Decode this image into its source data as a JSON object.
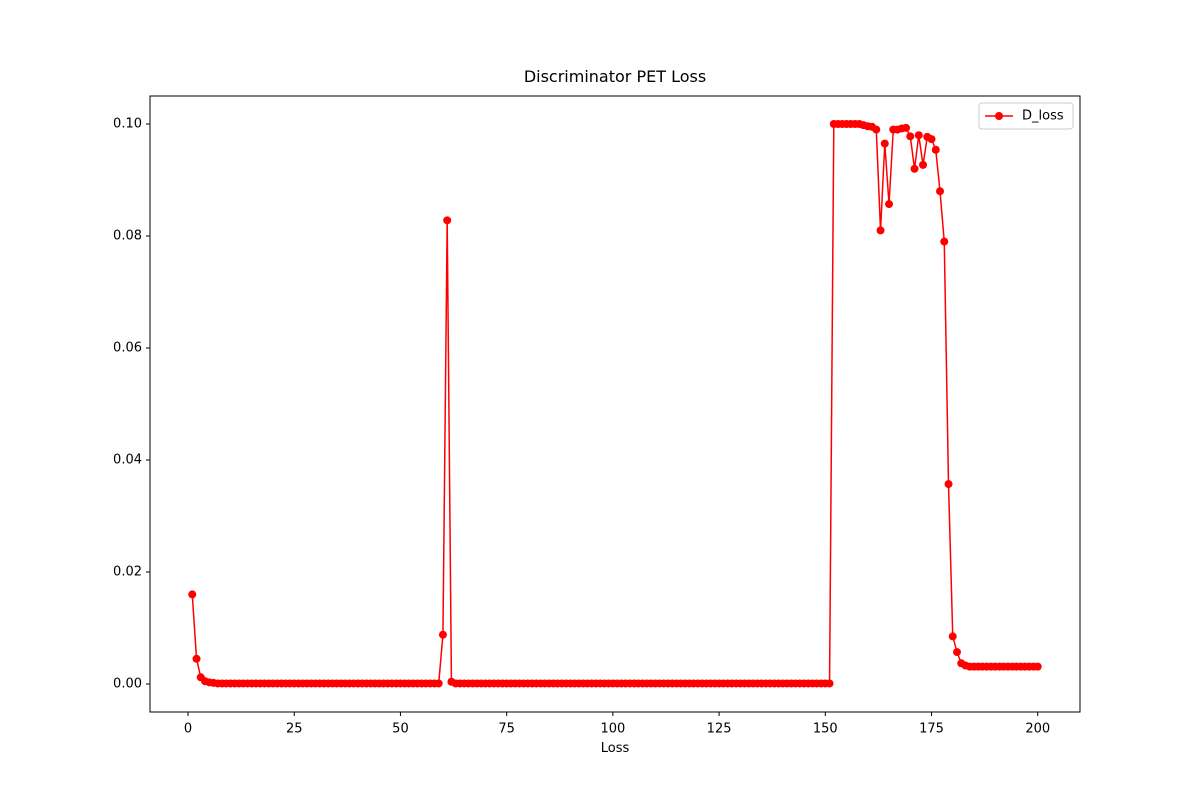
{
  "chart_data": {
    "type": "line",
    "title": "Discriminator PET Loss",
    "x_label": "Loss",
    "x": [
      1,
      2,
      3,
      4,
      5,
      6,
      7,
      8,
      9,
      10,
      11,
      12,
      13,
      14,
      15,
      16,
      17,
      18,
      19,
      20,
      21,
      22,
      23,
      24,
      25,
      26,
      27,
      28,
      29,
      30,
      31,
      32,
      33,
      34,
      35,
      36,
      37,
      38,
      39,
      40,
      41,
      42,
      43,
      44,
      45,
      46,
      47,
      48,
      49,
      50,
      51,
      52,
      53,
      54,
      55,
      56,
      57,
      58,
      59,
      60,
      61,
      62,
      63,
      64,
      65,
      66,
      67,
      68,
      69,
      70,
      71,
      72,
      73,
      74,
      75,
      76,
      77,
      78,
      79,
      80,
      81,
      82,
      83,
      84,
      85,
      86,
      87,
      88,
      89,
      90,
      91,
      92,
      93,
      94,
      95,
      96,
      97,
      98,
      99,
      100,
      101,
      102,
      103,
      104,
      105,
      106,
      107,
      108,
      109,
      110,
      111,
      112,
      113,
      114,
      115,
      116,
      117,
      118,
      119,
      120,
      121,
      122,
      123,
      124,
      125,
      126,
      127,
      128,
      129,
      130,
      131,
      132,
      133,
      134,
      135,
      136,
      137,
      138,
      139,
      140,
      141,
      142,
      143,
      144,
      145,
      146,
      147,
      148,
      149,
      150,
      151,
      152,
      153,
      154,
      155,
      156,
      157,
      158,
      159,
      160,
      161,
      162,
      163,
      164,
      165,
      166,
      167,
      168,
      169,
      170,
      171,
      172,
      173,
      174,
      175,
      176,
      177,
      178,
      179,
      180,
      181,
      182,
      183,
      184,
      185,
      186,
      187,
      188,
      189,
      190,
      191,
      192,
      193,
      194,
      195,
      196,
      197,
      198,
      199,
      200
    ],
    "series": [
      {
        "name": "D_loss",
        "color": "#ff0000",
        "values": [
          0.016,
          0.0045,
          0.0012,
          0.0005,
          0.0003,
          0.0002,
          0.0001,
          0.0001,
          0.0001,
          0.0001,
          0.0001,
          0.0001,
          0.0001,
          0.0001,
          0.0001,
          0.0001,
          0.0001,
          0.0001,
          0.0001,
          0.0001,
          0.0001,
          0.0001,
          0.0001,
          0.0001,
          0.0001,
          0.0001,
          0.0001,
          0.0001,
          0.0001,
          0.0001,
          0.0001,
          0.0001,
          0.0001,
          0.0001,
          0.0001,
          0.0001,
          0.0001,
          0.0001,
          0.0001,
          0.0001,
          0.0001,
          0.0001,
          0.0001,
          0.0001,
          0.0001,
          0.0001,
          0.0001,
          0.0001,
          0.0001,
          0.0001,
          0.0001,
          0.0001,
          0.0001,
          0.0001,
          0.0001,
          0.0001,
          0.0001,
          0.0001,
          0.0001,
          0.0088,
          0.0828,
          0.0004,
          0.0001,
          0.0001,
          0.0001,
          0.0001,
          0.0001,
          0.0001,
          0.0001,
          0.0001,
          0.0001,
          0.0001,
          0.0001,
          0.0001,
          0.0001,
          0.0001,
          0.0001,
          0.0001,
          0.0001,
          0.0001,
          0.0001,
          0.0001,
          0.0001,
          0.0001,
          0.0001,
          0.0001,
          0.0001,
          0.0001,
          0.0001,
          0.0001,
          0.0001,
          0.0001,
          0.0001,
          0.0001,
          0.0001,
          0.0001,
          0.0001,
          0.0001,
          0.0001,
          0.0001,
          0.0001,
          0.0001,
          0.0001,
          0.0001,
          0.0001,
          0.0001,
          0.0001,
          0.0001,
          0.0001,
          0.0001,
          0.0001,
          0.0001,
          0.0001,
          0.0001,
          0.0001,
          0.0001,
          0.0001,
          0.0001,
          0.0001,
          0.0001,
          0.0001,
          0.0001,
          0.0001,
          0.0001,
          0.0001,
          0.0001,
          0.0001,
          0.0001,
          0.0001,
          0.0001,
          0.0001,
          0.0001,
          0.0001,
          0.0001,
          0.0001,
          0.0001,
          0.0001,
          0.0001,
          0.0001,
          0.0001,
          0.0001,
          0.0001,
          0.0001,
          0.0001,
          0.0001,
          0.0001,
          0.0001,
          0.0001,
          0.0001,
          0.0001,
          0.0001,
          0.1,
          0.1,
          0.1,
          0.1,
          0.1,
          0.1,
          0.1,
          0.0998,
          0.0996,
          0.0995,
          0.099,
          0.081,
          0.0965,
          0.0857,
          0.099,
          0.099,
          0.0992,
          0.0993,
          0.0978,
          0.092,
          0.098,
          0.0927,
          0.0977,
          0.0973,
          0.0954,
          0.088,
          0.079,
          0.0357,
          0.0085,
          0.0057,
          0.0037,
          0.0033,
          0.0031,
          0.0031,
          0.0031,
          0.0031,
          0.0031,
          0.0031,
          0.0031,
          0.0031,
          0.0031,
          0.0031,
          0.0031,
          0.0031,
          0.0031,
          0.0031,
          0.0031,
          0.0031,
          0.0031
        ]
      }
    ],
    "xlim": [
      -8.95,
      209.95
    ],
    "ylim": [
      -0.005,
      0.105
    ],
    "xticks": [
      0,
      25,
      50,
      75,
      100,
      125,
      150,
      175,
      200
    ],
    "yticks": [
      {
        "value": 0,
        "label": "0.00"
      },
      {
        "value": 0.02,
        "label": "0.02"
      },
      {
        "value": 0.04,
        "label": "0.04"
      },
      {
        "value": 0.06,
        "label": "0.06"
      },
      {
        "value": 0.08,
        "label": "0.08"
      },
      {
        "value": 0.1,
        "label": "0.10"
      }
    ],
    "legend": "upper right",
    "grid": false
  }
}
